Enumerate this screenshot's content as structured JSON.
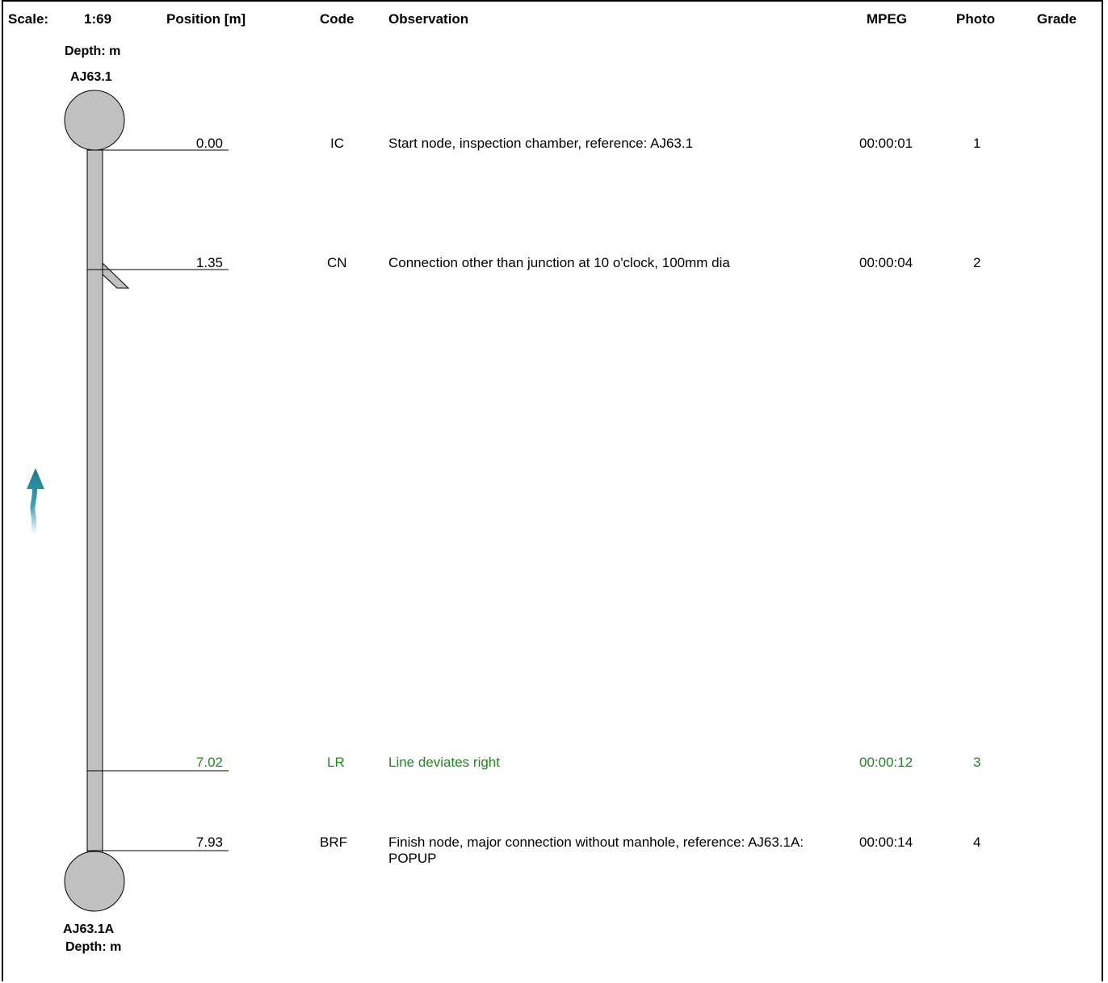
{
  "header": {
    "scale_label": "Scale:",
    "scale_value": "1:69",
    "position": "Position [m]",
    "code": "Code",
    "observation": "Observation",
    "mpeg": "MPEG",
    "photo": "Photo",
    "grade": "Grade"
  },
  "start_node": {
    "depth": "Depth: m",
    "ref": "AJ63.1"
  },
  "end_node": {
    "ref": "AJ63.1A",
    "depth": "Depth: m"
  },
  "colors": {
    "normal": "#000000",
    "highlight": "#1e8a1e",
    "pipe": "#c0c0c0",
    "flow_arrow": "#1a7a8c"
  },
  "rows": [
    {
      "position": "0.00",
      "code": "IC",
      "observation": "Start node, inspection chamber, reference: AJ63.1",
      "mpeg": "00:00:01",
      "photo": "1"
    },
    {
      "position": "1.35",
      "code": "CN",
      "observation": "Connection other than junction at 10 o'clock, 100mm dia",
      "mpeg": "00:00:04",
      "photo": "2"
    },
    {
      "position": "7.02",
      "code": "LR",
      "observation": "Line deviates right",
      "mpeg": "00:00:12",
      "photo": "3"
    },
    {
      "position": "7.93",
      "code": "BRF",
      "observation": "Finish node, major connection without manhole, reference: AJ63.1A: POPUP",
      "mpeg": "00:00:14",
      "photo": "4"
    }
  ]
}
